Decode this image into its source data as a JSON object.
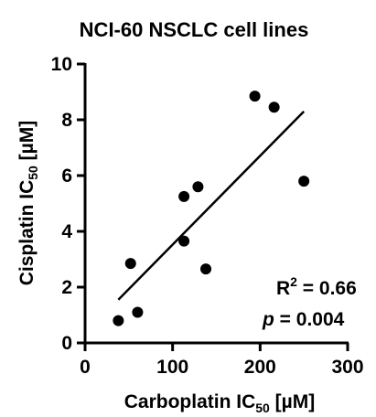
{
  "chart_data": {
    "type": "scatter",
    "title": "NCI-60 NSCLC cell lines",
    "xlabel": {
      "main": "Carboplatin IC",
      "sub": "50",
      "unit": " [µM]"
    },
    "ylabel": {
      "main": "Cisplatin IC",
      "sub": "50",
      "unit": " [µM]"
    },
    "xlim": [
      0,
      300
    ],
    "ylim": [
      0,
      10
    ],
    "xticks": [
      0,
      100,
      200,
      300
    ],
    "xtick_labels": [
      "0",
      "100",
      "200",
      "300"
    ],
    "yticks": [
      0,
      2,
      4,
      6,
      8,
      10
    ],
    "ytick_labels": [
      "0",
      "2",
      "4",
      "6",
      "8",
      "10"
    ],
    "points": [
      {
        "x": 38,
        "y": 0.8
      },
      {
        "x": 52,
        "y": 2.85
      },
      {
        "x": 60,
        "y": 1.1
      },
      {
        "x": 113,
        "y": 5.25
      },
      {
        "x": 113,
        "y": 3.65
      },
      {
        "x": 129,
        "y": 5.6
      },
      {
        "x": 138,
        "y": 2.65
      },
      {
        "x": 194,
        "y": 8.85
      },
      {
        "x": 216,
        "y": 8.45
      },
      {
        "x": 250,
        "y": 5.8
      }
    ],
    "fit_line": {
      "x": [
        38,
        250
      ],
      "y": [
        1.55,
        8.3
      ]
    },
    "annotations": {
      "r2_label": "R",
      "r2_sup": "2",
      "r2_value": " = 0.66",
      "p_label": "p",
      "p_value": " = 0.004"
    },
    "grid": false,
    "legend": "none",
    "marker_color": "#000000"
  }
}
